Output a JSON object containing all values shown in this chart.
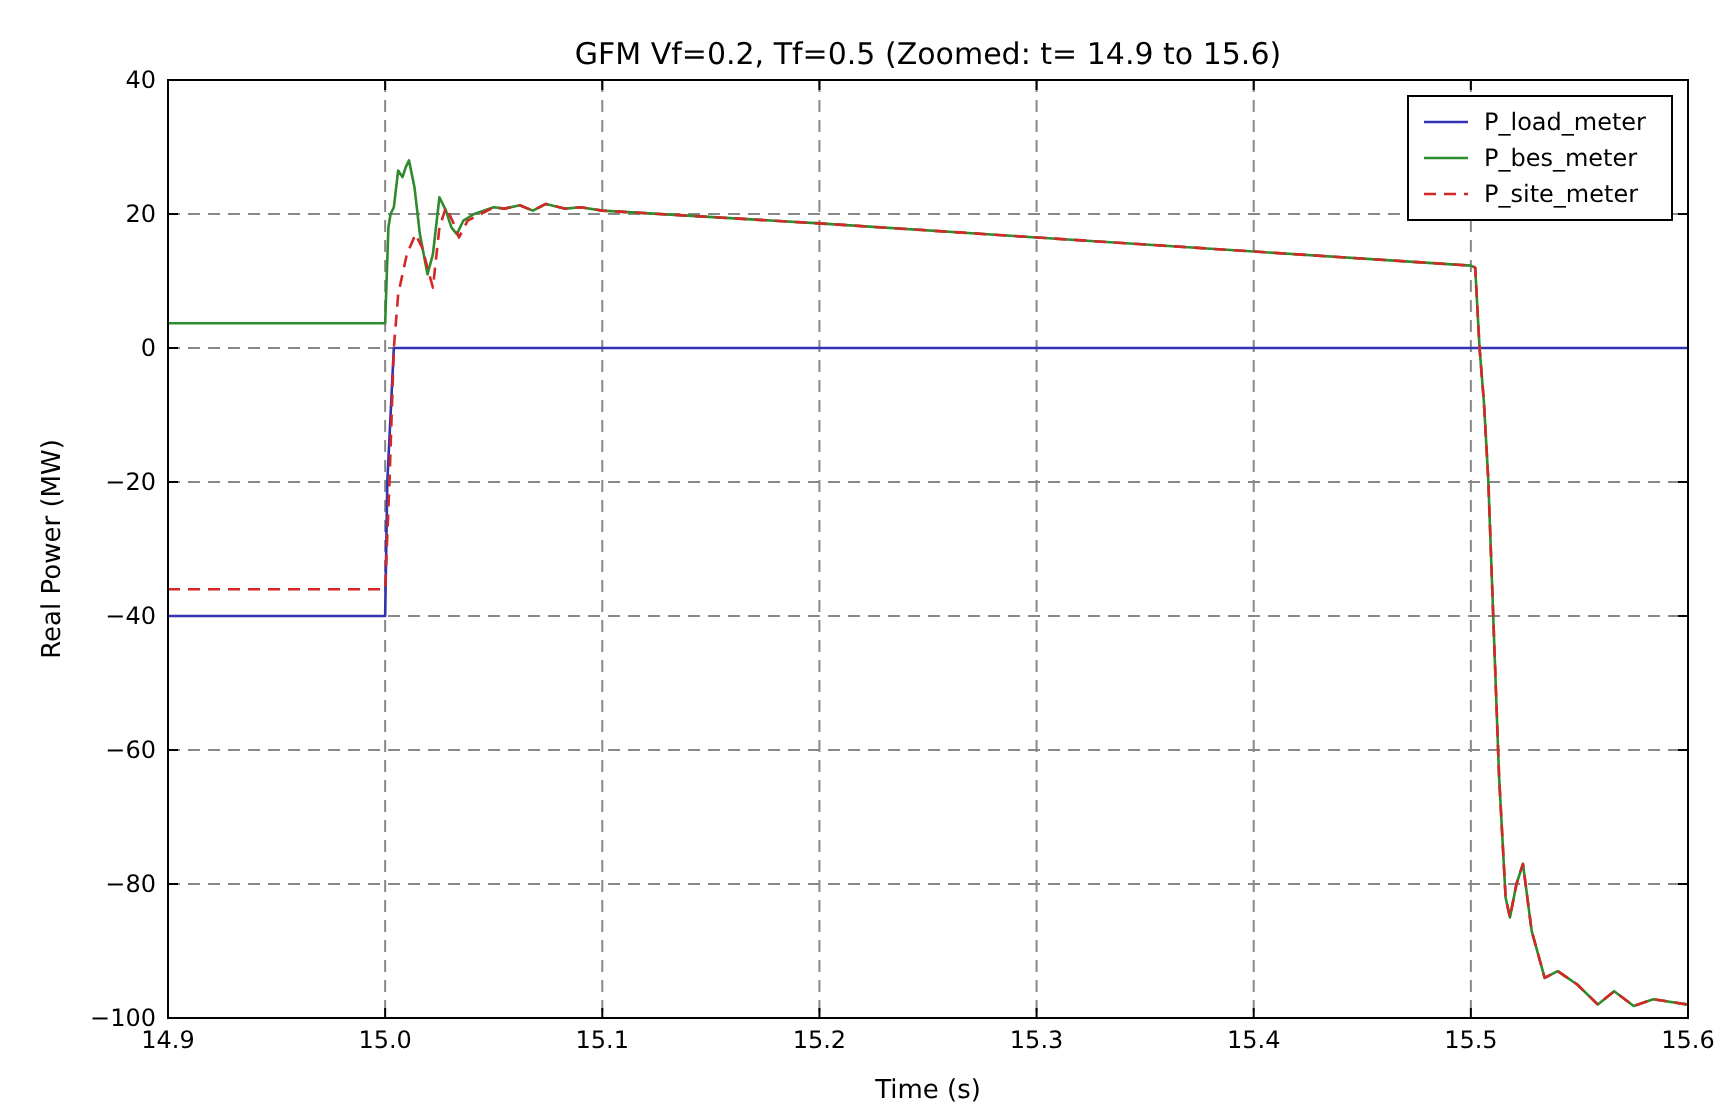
{
  "chart_data": {
    "type": "line",
    "title": "GFM Vf=0.2, Tf=0.5 (Zoomed: t= 14.9 to 15.6)",
    "xlabel": "Time (s)",
    "ylabel": "Real Power (MW)",
    "xlim": [
      14.9,
      15.6
    ],
    "ylim": [
      -100,
      40
    ],
    "xticks": [
      14.9,
      {
        "value": 15.0,
        "label": "15.0"
      },
      15.1,
      15.2,
      15.3,
      15.4,
      15.5,
      15.6
    ],
    "yticks": [
      -100,
      -80,
      -60,
      -40,
      -20,
      0,
      20,
      40
    ],
    "grid": true,
    "legend": "top right",
    "series": [
      {
        "name": "P_load_meter",
        "color": "#3333b2",
        "line_style": "solid",
        "x": [
          14.9,
          15.0,
          15.001,
          15.004,
          15.6
        ],
        "values": [
          -40,
          -40,
          -20,
          0,
          0
        ]
      },
      {
        "name": "P_bes_meter",
        "color": "#2e8b2e",
        "line_style": "solid",
        "x": [
          14.9,
          15.0,
          15.0015,
          15.0025,
          15.004,
          15.006,
          15.008,
          15.0095,
          15.011,
          15.0135,
          15.016,
          15.0195,
          15.022,
          15.025,
          15.028,
          15.0305,
          15.033,
          15.036,
          15.041,
          15.05,
          15.055,
          15.062,
          15.068,
          15.074,
          15.083,
          15.09,
          15.1,
          15.2,
          15.3,
          15.4,
          15.5,
          15.502,
          15.504,
          15.506,
          15.508,
          15.513,
          15.516,
          15.518,
          15.521,
          15.524,
          15.528,
          15.534,
          15.54,
          15.549,
          15.5585,
          15.566,
          15.575,
          15.584,
          15.6
        ],
        "values": [
          3.7,
          3.7,
          18,
          20,
          21,
          26.5,
          25.5,
          27,
          28,
          24,
          17,
          11,
          14,
          22.5,
          20.5,
          18,
          17,
          19,
          20,
          21,
          20.8,
          21.3,
          20.5,
          21.5,
          20.8,
          21,
          20.5,
          18.6,
          16.5,
          14.4,
          12.3,
          12,
          0,
          -8,
          -19.5,
          -64,
          -82,
          -85,
          -80,
          -77,
          -87,
          -94,
          -93,
          -95,
          -98,
          -96,
          -98.2,
          -97.2,
          -98
        ]
      },
      {
        "name": "P_site_meter",
        "color": "#d62728",
        "line_style": "dashed",
        "x": [
          14.9,
          15.0,
          15.002,
          15.004,
          15.006,
          15.01,
          15.014,
          15.017,
          15.0195,
          15.022,
          15.025,
          15.028,
          15.031,
          15.034,
          15.038,
          15.044,
          15.05,
          15.055,
          15.062,
          15.068,
          15.074,
          15.083,
          15.09,
          15.1,
          15.2,
          15.3,
          15.4,
          15.5,
          15.502,
          15.504,
          15.506,
          15.508,
          15.513,
          15.516,
          15.518,
          15.521,
          15.524,
          15.528,
          15.534,
          15.54,
          15.549,
          15.5585,
          15.566,
          15.575,
          15.584,
          15.6
        ],
        "values": [
          -36,
          -36,
          -20,
          0,
          8,
          14,
          17,
          15,
          12,
          9,
          18,
          21,
          19,
          16.5,
          19,
          20,
          21,
          20.8,
          21.3,
          20.5,
          21.5,
          20.8,
          21,
          20.5,
          18.6,
          16.5,
          14.4,
          12.3,
          12,
          0,
          -8,
          -19.5,
          -64,
          -82,
          -85,
          -80,
          -77,
          -87,
          -94,
          -93,
          -95,
          -98,
          -96,
          -98.2,
          -97.2,
          -98
        ]
      }
    ]
  }
}
